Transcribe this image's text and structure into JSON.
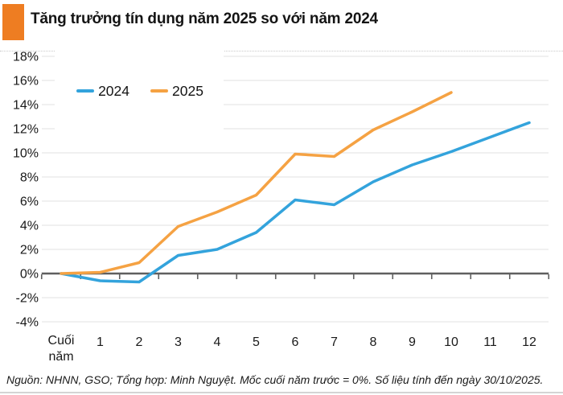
{
  "header": {
    "title": "Tăng trưởng tín dụng năm 2025 so với năm 2024",
    "accent_color": "#EE7D22"
  },
  "legend": {
    "items": [
      {
        "label": "2024",
        "color": "#33A3DC"
      },
      {
        "label": "2025",
        "color": "#F5A243"
      }
    ]
  },
  "chart_data": {
    "type": "line",
    "title": "Tăng trưởng tín dụng năm 2025 so với năm 2024",
    "categories": [
      "Cuối năm",
      "1",
      "2",
      "3",
      "4",
      "5",
      "6",
      "7",
      "8",
      "9",
      "10",
      "11",
      "12"
    ],
    "series": [
      {
        "name": "2024",
        "color": "#33A3DC",
        "values": [
          0,
          -0.6,
          -0.7,
          1.5,
          2.0,
          3.4,
          6.1,
          5.7,
          7.6,
          9.0,
          10.1,
          11.3,
          12.5
        ]
      },
      {
        "name": "2025",
        "color": "#F5A243",
        "values": [
          0,
          0.1,
          0.9,
          3.9,
          5.1,
          6.5,
          9.9,
          9.7,
          11.9,
          13.4,
          15.0
        ]
      }
    ],
    "xlabel": "",
    "ylabel": "",
    "ylim": [
      -4,
      18
    ],
    "ytick_step": 2,
    "ytick_labels": [
      "18%",
      "16%",
      "14%",
      "12%",
      "10%",
      "8%",
      "6%",
      "4%",
      "2%",
      "0%",
      "-2%",
      "-4%"
    ],
    "grid": "horizontal",
    "zero_axis": true,
    "legend_position": "top-left",
    "gridline_color": "#e2e2e2",
    "axis_color": "#5f5f5f",
    "label_color": "#191919"
  },
  "footer": {
    "text": "Nguồn: NHNN, GSO; Tổng hợp: Minh Nguyệt. Mốc cuối năm trước = 0%.  Số liệu tính đến ngày 30/10/2025."
  }
}
